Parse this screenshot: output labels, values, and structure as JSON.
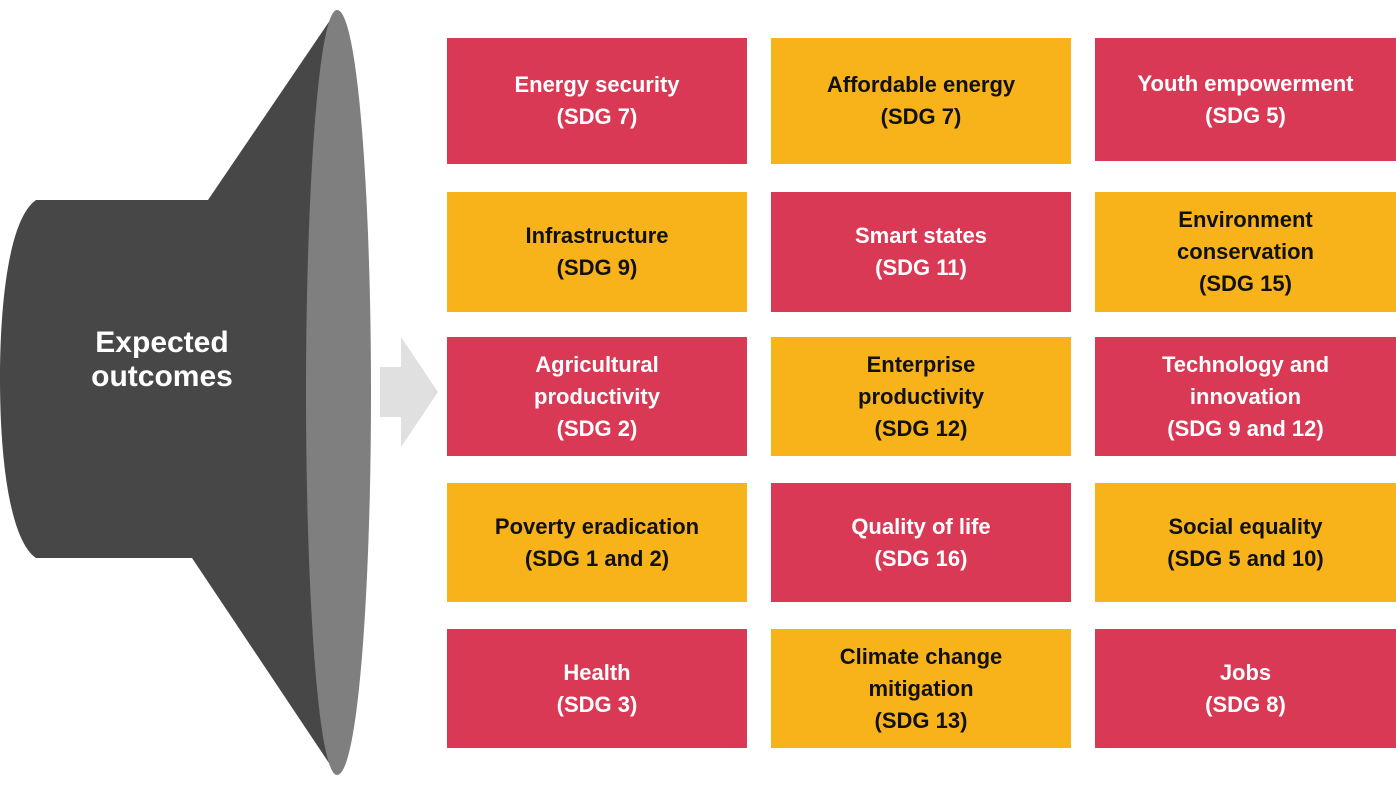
{
  "colors": {
    "red": "#D93954",
    "yellow": "#F8B31B",
    "megaphone_body": "#474747",
    "megaphone_rim": "#7F7F7F",
    "arrow": "#E0E0E0",
    "text_on_red": "#FFFFFF",
    "text_on_yellow": "#111111"
  },
  "megaphone": {
    "label_lines": [
      "Expected",
      "outcomes"
    ]
  },
  "arrow": {
    "icon": "arrow-right-icon"
  },
  "outcomes": [
    {
      "row": 0,
      "col": 0,
      "color": "red",
      "lines": [
        "Energy security",
        "(SDG 7)"
      ]
    },
    {
      "row": 0,
      "col": 1,
      "color": "yellow",
      "lines": [
        "Affordable energy",
        "(SDG 7)"
      ]
    },
    {
      "row": 0,
      "col": 2,
      "color": "red",
      "lines": [
        "Youth empowerment",
        "(SDG 5)"
      ]
    },
    {
      "row": 1,
      "col": 0,
      "color": "yellow",
      "lines": [
        "Infrastructure",
        "(SDG 9)"
      ]
    },
    {
      "row": 1,
      "col": 1,
      "color": "red",
      "lines": [
        "Smart states",
        "(SDG 11)"
      ]
    },
    {
      "row": 1,
      "col": 2,
      "color": "yellow",
      "lines": [
        "Environment",
        "conservation",
        "(SDG 15)"
      ]
    },
    {
      "row": 2,
      "col": 0,
      "color": "red",
      "lines": [
        "Agricultural",
        "productivity",
        "(SDG 2)"
      ]
    },
    {
      "row": 2,
      "col": 1,
      "color": "yellow",
      "lines": [
        "Enterprise",
        "productivity",
        "(SDG 12)"
      ]
    },
    {
      "row": 2,
      "col": 2,
      "color": "red",
      "lines": [
        "Technology and",
        "innovation",
        "(SDG 9 and 12)"
      ]
    },
    {
      "row": 3,
      "col": 0,
      "color": "yellow",
      "lines": [
        "Poverty eradication",
        "(SDG 1 and 2)"
      ]
    },
    {
      "row": 3,
      "col": 1,
      "color": "red",
      "lines": [
        "Quality of life",
        "(SDG 16)"
      ]
    },
    {
      "row": 3,
      "col": 2,
      "color": "yellow",
      "lines": [
        "Social equality",
        "(SDG 5 and 10)"
      ]
    },
    {
      "row": 4,
      "col": 0,
      "color": "red",
      "lines": [
        "Health",
        "(SDG 3)"
      ]
    },
    {
      "row": 4,
      "col": 1,
      "color": "yellow",
      "lines": [
        "Climate change",
        "mitigation",
        "(SDG 13)"
      ]
    },
    {
      "row": 4,
      "col": 2,
      "color": "red",
      "lines": [
        "Jobs",
        "(SDG 8)"
      ]
    }
  ]
}
